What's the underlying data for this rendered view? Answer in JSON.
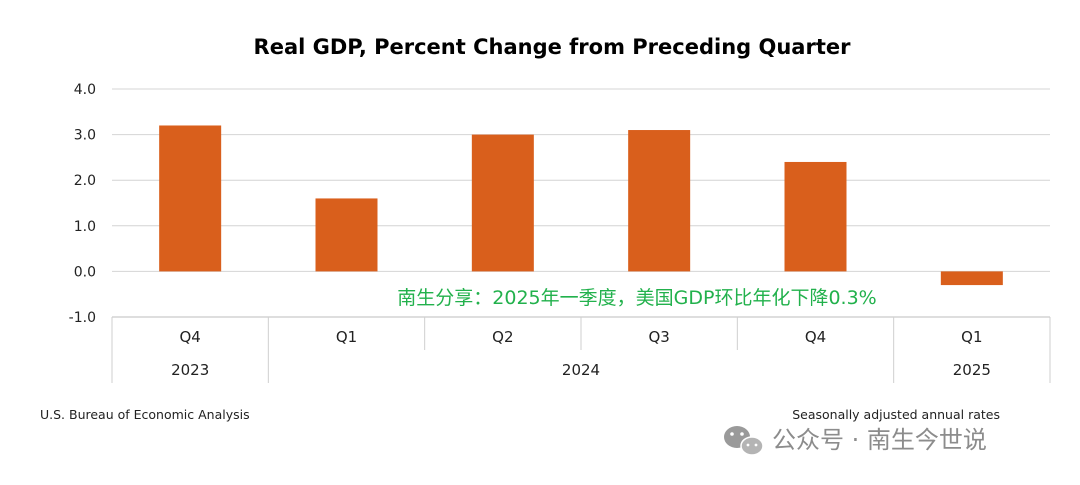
{
  "chart_data": {
    "type": "bar",
    "title": "Real GDP, Percent Change from Preceding Quarter",
    "categories": [
      "Q4",
      "Q1",
      "Q2",
      "Q3",
      "Q4",
      "Q1"
    ],
    "year_groups": [
      {
        "label": "2023",
        "span": 1
      },
      {
        "label": "2024",
        "span": 4
      },
      {
        "label": "2025",
        "span": 1
      }
    ],
    "values": [
      3.2,
      1.6,
      3.0,
      3.1,
      2.4,
      -0.3
    ],
    "yticks": [
      "4.0",
      "3.0",
      "2.0",
      "1.0",
      "0.0",
      "-1.0"
    ],
    "ylim": [
      -1.0,
      4.0
    ],
    "grid": true,
    "bar_color": "#d95f1c",
    "xlabel": "",
    "ylabel": "",
    "annotation": "南生分享：2025年一季度，美国GDP环比年化下降0.3%",
    "annotation_color": "#22b14c"
  },
  "footer": {
    "source": "U.S. Bureau of Economic Analysis",
    "note": "Seasonally adjusted annual rates"
  },
  "watermark": {
    "icon": "wechat-icon",
    "text": "公众号 · 南生今世说"
  }
}
